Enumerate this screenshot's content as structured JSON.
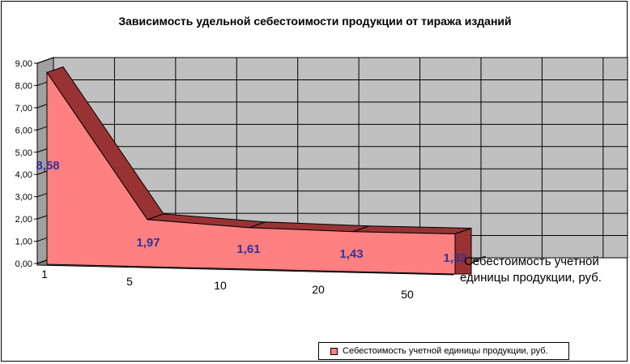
{
  "chart_data": {
    "type": "area",
    "title": "Зависимость удельной себестоимости продукции от тиража изданий",
    "categories": [
      "1",
      "5",
      "10",
      "20",
      "50"
    ],
    "series": [
      {
        "name": "Себестоимость учетной единицы продукции, руб.",
        "values": [
          8.58,
          1.97,
          1.61,
          1.43,
          1.33
        ],
        "labels": [
          "8,58",
          "1,97",
          "1,61",
          "1,43",
          "1,33"
        ]
      }
    ],
    "yticks": [
      "0,00",
      "1,00",
      "2,00",
      "3,00",
      "4,00",
      "5,00",
      "6,00",
      "7,00",
      "8,00",
      "9,00"
    ],
    "ylim": [
      0,
      9
    ],
    "series_axis_label": "Себестоимость учетной единицы продукции, руб.",
    "legend": {
      "position": "bottom-right",
      "text": "Себестоимость учетной единицы продукции, руб."
    },
    "grid": true,
    "colors": {
      "front": "#ff8080",
      "top": "#993333",
      "walls": "#c0c0c0",
      "floor": "#808080",
      "labels": "#333399"
    }
  }
}
